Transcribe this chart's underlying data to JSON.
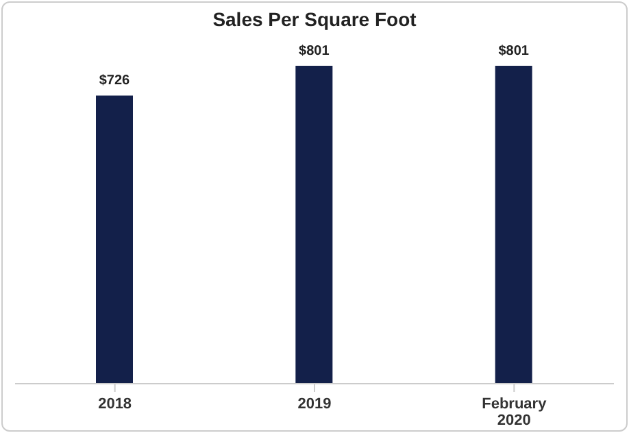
{
  "chart_data": {
    "type": "bar",
    "title": "Sales Per Square Foot",
    "categories": [
      "2018",
      "2019",
      "February 2020"
    ],
    "values": [
      726,
      801,
      801
    ],
    "value_labels": [
      "$726",
      "$801",
      "$801"
    ],
    "color": "#13204a",
    "tick_labels": "x",
    "legend": false
  }
}
